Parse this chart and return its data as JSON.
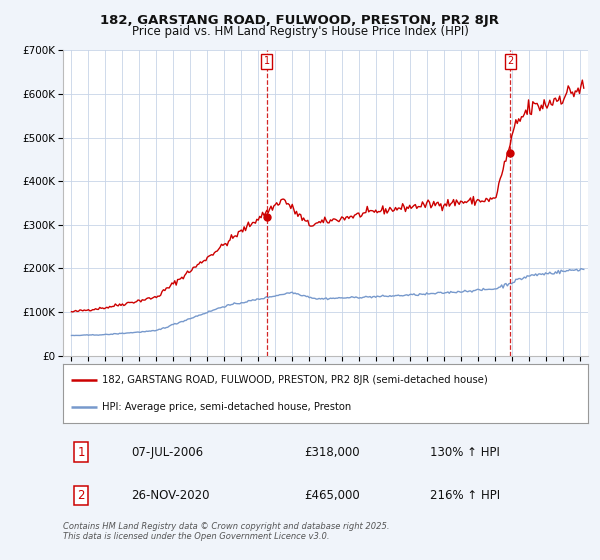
{
  "title": "182, GARSTANG ROAD, FULWOOD, PRESTON, PR2 8JR",
  "subtitle": "Price paid vs. HM Land Registry's House Price Index (HPI)",
  "ylim": [
    0,
    700000
  ],
  "yticks": [
    0,
    100000,
    200000,
    300000,
    400000,
    500000,
    600000,
    700000
  ],
  "ytick_labels": [
    "£0",
    "£100K",
    "£200K",
    "£300K",
    "£400K",
    "£500K",
    "£600K",
    "£700K"
  ],
  "xlim": [
    1994.5,
    2025.5
  ],
  "xticks": [
    1995,
    1996,
    1997,
    1998,
    1999,
    2000,
    2001,
    2002,
    2003,
    2004,
    2005,
    2006,
    2007,
    2008,
    2009,
    2010,
    2011,
    2012,
    2013,
    2014,
    2015,
    2016,
    2017,
    2018,
    2019,
    2020,
    2021,
    2022,
    2023,
    2024,
    2025
  ],
  "background_color": "#f0f4fa",
  "plot_bg_color": "#ffffff",
  "grid_color": "#c8d4e8",
  "red_line_color": "#cc0000",
  "blue_line_color": "#7799cc",
  "marker_color": "#cc0000",
  "vline_color": "#cc0000",
  "sale1_x": 2006.52,
  "sale1_y": 318000,
  "sale1_label": "1",
  "sale1_date": "07-JUL-2006",
  "sale1_price": "£318,000",
  "sale1_hpi": "130% ↑ HPI",
  "sale2_x": 2020.9,
  "sale2_y": 465000,
  "sale2_label": "2",
  "sale2_date": "26-NOV-2020",
  "sale2_price": "£465,000",
  "sale2_hpi": "216% ↑ HPI",
  "legend_label1": "182, GARSTANG ROAD, FULWOOD, PRESTON, PR2 8JR (semi-detached house)",
  "legend_label2": "HPI: Average price, semi-detached house, Preston",
  "footnote1": "Contains HM Land Registry data © Crown copyright and database right 2025.",
  "footnote2": "This data is licensed under the Open Government Licence v3.0."
}
